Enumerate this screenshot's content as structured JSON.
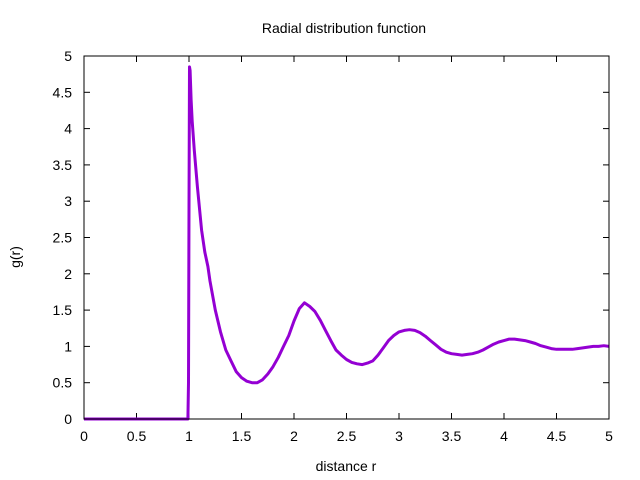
{
  "chart_data": {
    "type": "line",
    "title": "Radial distribution function",
    "xlabel": "distance r",
    "ylabel": "g(r)",
    "xlim": [
      0,
      5
    ],
    "ylim": [
      0,
      5
    ],
    "xticks": [
      0,
      0.5,
      1,
      1.5,
      2,
      2.5,
      3,
      3.5,
      4,
      4.5,
      5
    ],
    "xtick_labels": [
      "0",
      "0.5",
      "1",
      "1.5",
      "2",
      "2.5",
      "3",
      "3.5",
      "4",
      "4.5",
      "5"
    ],
    "yticks": [
      0,
      0.5,
      1,
      1.5,
      2,
      2.5,
      3,
      3.5,
      4,
      4.5,
      5
    ],
    "ytick_labels": [
      "0",
      "0.5",
      "1",
      "1.5",
      "2",
      "2.5",
      "3",
      "3.5",
      "4",
      "4.5",
      "5"
    ],
    "grid": false,
    "series_color": "#9400d3",
    "series": [
      {
        "x": [
          0,
          0.5,
          0.99,
          0.995,
          1.0,
          1.005,
          1.01,
          1.02,
          1.03,
          1.05,
          1.08,
          1.1,
          1.12,
          1.15,
          1.18,
          1.2,
          1.25,
          1.3,
          1.35,
          1.4,
          1.45,
          1.5,
          1.55,
          1.6,
          1.65,
          1.7,
          1.75,
          1.8,
          1.85,
          1.9,
          1.95,
          2.0,
          2.05,
          2.1,
          2.15,
          2.2,
          2.25,
          2.3,
          2.35,
          2.4,
          2.45,
          2.5,
          2.55,
          2.6,
          2.65,
          2.7,
          2.75,
          2.8,
          2.85,
          2.9,
          2.95,
          3.0,
          3.05,
          3.1,
          3.15,
          3.2,
          3.25,
          3.3,
          3.35,
          3.4,
          3.45,
          3.5,
          3.55,
          3.6,
          3.65,
          3.7,
          3.75,
          3.8,
          3.85,
          3.9,
          3.95,
          4.0,
          4.05,
          4.1,
          4.15,
          4.2,
          4.25,
          4.3,
          4.35,
          4.4,
          4.45,
          4.5,
          4.55,
          4.6,
          4.65,
          4.7,
          4.75,
          4.8,
          4.85,
          4.9,
          4.95,
          5.0
        ],
        "y": [
          0,
          0,
          0,
          0.5,
          2.9,
          4.85,
          4.8,
          4.4,
          4.1,
          3.7,
          3.2,
          2.9,
          2.6,
          2.3,
          2.1,
          1.9,
          1.5,
          1.2,
          0.95,
          0.8,
          0.65,
          0.57,
          0.52,
          0.5,
          0.5,
          0.54,
          0.62,
          0.72,
          0.85,
          1.0,
          1.15,
          1.35,
          1.52,
          1.6,
          1.55,
          1.48,
          1.36,
          1.22,
          1.08,
          0.95,
          0.88,
          0.82,
          0.78,
          0.76,
          0.75,
          0.77,
          0.8,
          0.88,
          0.98,
          1.08,
          1.15,
          1.2,
          1.22,
          1.23,
          1.22,
          1.19,
          1.14,
          1.08,
          1.02,
          0.96,
          0.92,
          0.9,
          0.89,
          0.88,
          0.89,
          0.9,
          0.92,
          0.95,
          0.99,
          1.03,
          1.06,
          1.08,
          1.1,
          1.1,
          1.09,
          1.08,
          1.06,
          1.04,
          1.01,
          0.99,
          0.97,
          0.96,
          0.96,
          0.96,
          0.96,
          0.97,
          0.98,
          0.99,
          1.0,
          1.0,
          1.01,
          1.0
        ]
      }
    ]
  }
}
